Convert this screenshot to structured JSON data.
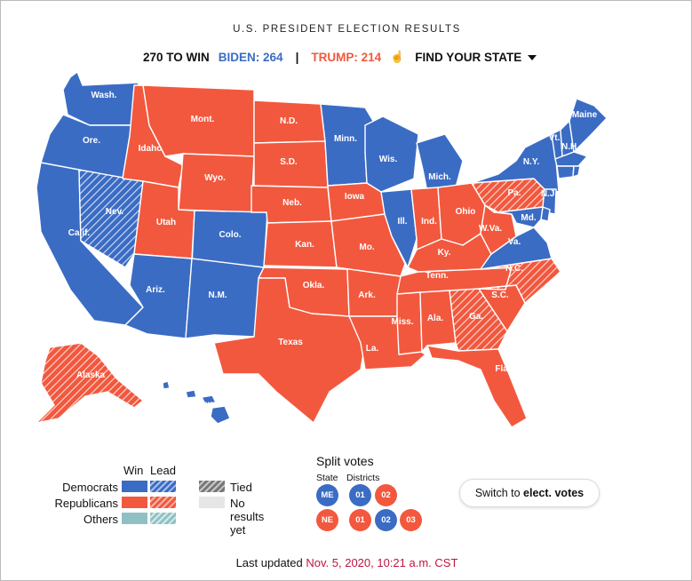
{
  "header": {
    "title": "U.S. PRESIDENT ELECTION RESULTS",
    "to_win": "270 TO WIN",
    "biden": "BIDEN: 264",
    "separator": "|",
    "trump": "TRUMP: 214",
    "find_state": "FIND YOUR STATE"
  },
  "colors": {
    "democrat": "#3b6cc4",
    "republican": "#f2583e",
    "other": "#8fc1c4",
    "tied": "#777777",
    "no_results": "#e6e6e6",
    "stroke": "#ffffff",
    "updated_accent": "#c0143c"
  },
  "map": {
    "states": [
      {
        "abbr": "WA",
        "label": "Wash.",
        "status": "dem-win"
      },
      {
        "abbr": "OR",
        "label": "Ore.",
        "status": "dem-win"
      },
      {
        "abbr": "CA",
        "label": "Calif.",
        "status": "dem-win"
      },
      {
        "abbr": "NV",
        "label": "Nev.",
        "status": "dem-lead"
      },
      {
        "abbr": "ID",
        "label": "Idaho",
        "status": "rep-win"
      },
      {
        "abbr": "MT",
        "label": "Mont.",
        "status": "rep-win"
      },
      {
        "abbr": "WY",
        "label": "Wyo.",
        "status": "rep-win"
      },
      {
        "abbr": "UT",
        "label": "Utah",
        "status": "rep-win"
      },
      {
        "abbr": "CO",
        "label": "Colo.",
        "status": "dem-win"
      },
      {
        "abbr": "AZ",
        "label": "Ariz.",
        "status": "dem-win"
      },
      {
        "abbr": "NM",
        "label": "N.M.",
        "status": "dem-win"
      },
      {
        "abbr": "ND",
        "label": "N.D.",
        "status": "rep-win"
      },
      {
        "abbr": "SD",
        "label": "S.D.",
        "status": "rep-win"
      },
      {
        "abbr": "NE",
        "label": "Neb.",
        "status": "rep-win"
      },
      {
        "abbr": "KS",
        "label": "Kan.",
        "status": "rep-win"
      },
      {
        "abbr": "OK",
        "label": "Okla.",
        "status": "rep-win"
      },
      {
        "abbr": "TX",
        "label": "Texas",
        "status": "rep-win"
      },
      {
        "abbr": "MN",
        "label": "Minn.",
        "status": "dem-win"
      },
      {
        "abbr": "IA",
        "label": "Iowa",
        "status": "rep-win"
      },
      {
        "abbr": "MO",
        "label": "Mo.",
        "status": "rep-win"
      },
      {
        "abbr": "AR",
        "label": "Ark.",
        "status": "rep-win"
      },
      {
        "abbr": "LA",
        "label": "La.",
        "status": "rep-win"
      },
      {
        "abbr": "WI",
        "label": "Wis.",
        "status": "dem-win"
      },
      {
        "abbr": "IL",
        "label": "Ill.",
        "status": "dem-win"
      },
      {
        "abbr": "MI",
        "label": "Mich.",
        "status": "dem-win"
      },
      {
        "abbr": "IN",
        "label": "Ind.",
        "status": "rep-win"
      },
      {
        "abbr": "OH",
        "label": "Ohio",
        "status": "rep-win"
      },
      {
        "abbr": "KY",
        "label": "Ky.",
        "status": "rep-win"
      },
      {
        "abbr": "TN",
        "label": "Tenn.",
        "status": "rep-win"
      },
      {
        "abbr": "MS",
        "label": "Miss.",
        "status": "rep-win"
      },
      {
        "abbr": "AL",
        "label": "Ala.",
        "status": "rep-win"
      },
      {
        "abbr": "GA",
        "label": "Ga.",
        "status": "rep-lead"
      },
      {
        "abbr": "FL",
        "label": "Fla.",
        "status": "rep-win"
      },
      {
        "abbr": "SC",
        "label": "S.C.",
        "status": "rep-win"
      },
      {
        "abbr": "NC",
        "label": "N.C.",
        "status": "rep-lead"
      },
      {
        "abbr": "VA",
        "label": "Va.",
        "status": "dem-win"
      },
      {
        "abbr": "WV",
        "label": "W.Va.",
        "status": "rep-win"
      },
      {
        "abbr": "PA",
        "label": "Pa.",
        "status": "rep-lead"
      },
      {
        "abbr": "NY",
        "label": "N.Y.",
        "status": "dem-win"
      },
      {
        "abbr": "VT",
        "label": "Vt.",
        "status": "dem-win"
      },
      {
        "abbr": "NH",
        "label": "N.H.",
        "status": "dem-win"
      },
      {
        "abbr": "ME",
        "label": "Maine",
        "status": "dem-win"
      },
      {
        "abbr": "MA",
        "label": "",
        "status": "dem-win"
      },
      {
        "abbr": "CT",
        "label": "",
        "status": "dem-win"
      },
      {
        "abbr": "RI",
        "label": "",
        "status": "dem-win"
      },
      {
        "abbr": "NJ",
        "label": "N.J.",
        "status": "dem-win"
      },
      {
        "abbr": "DE",
        "label": "",
        "status": "dem-win"
      },
      {
        "abbr": "MD",
        "label": "Md.",
        "status": "dem-win"
      },
      {
        "abbr": "AK",
        "label": "Alaska",
        "status": "rep-lead"
      },
      {
        "abbr": "HI",
        "label": "Hawaii",
        "status": "dem-win"
      }
    ]
  },
  "legend": {
    "win": "Win",
    "lead": "Lead",
    "democrats": "Democrats",
    "republicans": "Republicans",
    "others": "Others",
    "tied": "Tied",
    "no_results": "No results yet"
  },
  "split_votes": {
    "title": "Split votes",
    "state_label": "State",
    "districts_label": "Districts",
    "maine": [
      {
        "text": "ME",
        "party": "dem"
      },
      {
        "text": "01",
        "party": "dem"
      },
      {
        "text": "02",
        "party": "rep"
      }
    ],
    "nebraska": [
      {
        "text": "NE",
        "party": "rep"
      },
      {
        "text": "01",
        "party": "rep"
      },
      {
        "text": "02",
        "party": "dem"
      },
      {
        "text": "03",
        "party": "rep"
      }
    ]
  },
  "switch_button": {
    "prefix": "Switch to",
    "bold": "elect. votes"
  },
  "footer": {
    "updated_label": "Last updated",
    "timestamp": "Nov. 5, 2020, 10:21 a.m. CST"
  }
}
